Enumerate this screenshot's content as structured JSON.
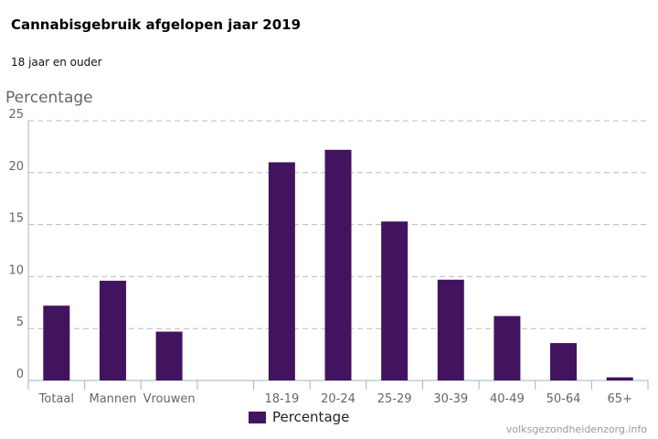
{
  "header": {
    "title": "Cannabisgebruik afgelopen jaar 2019",
    "subtitle": "18 jaar en ouder"
  },
  "credit": "volksgezondheidenzorg.info",
  "colors": {
    "bar": "#42145f",
    "grid": "#bbbbbb",
    "axis": "#a0b4c8",
    "tick_text": "#666666"
  },
  "chart_data": {
    "type": "bar",
    "title": "Cannabisgebruik afgelopen jaar 2019",
    "subtitle": "18 jaar en ouder",
    "ylabel": "Percentage",
    "xlabel": "",
    "ylim": [
      0,
      25
    ],
    "yticks": [
      0,
      5,
      10,
      15,
      20,
      25
    ],
    "grid": true,
    "legend_position": "bottom",
    "categories": [
      "Totaal",
      "Mannen",
      "Vrouwen",
      "",
      "18-19",
      "20-24",
      "25-29",
      "30-39",
      "40-49",
      "50-64",
      "65+"
    ],
    "series": [
      {
        "name": "Percentage",
        "values": [
          7.2,
          9.6,
          4.7,
          null,
          21.0,
          22.2,
          15.3,
          9.7,
          6.2,
          3.6,
          0.3
        ]
      }
    ]
  }
}
